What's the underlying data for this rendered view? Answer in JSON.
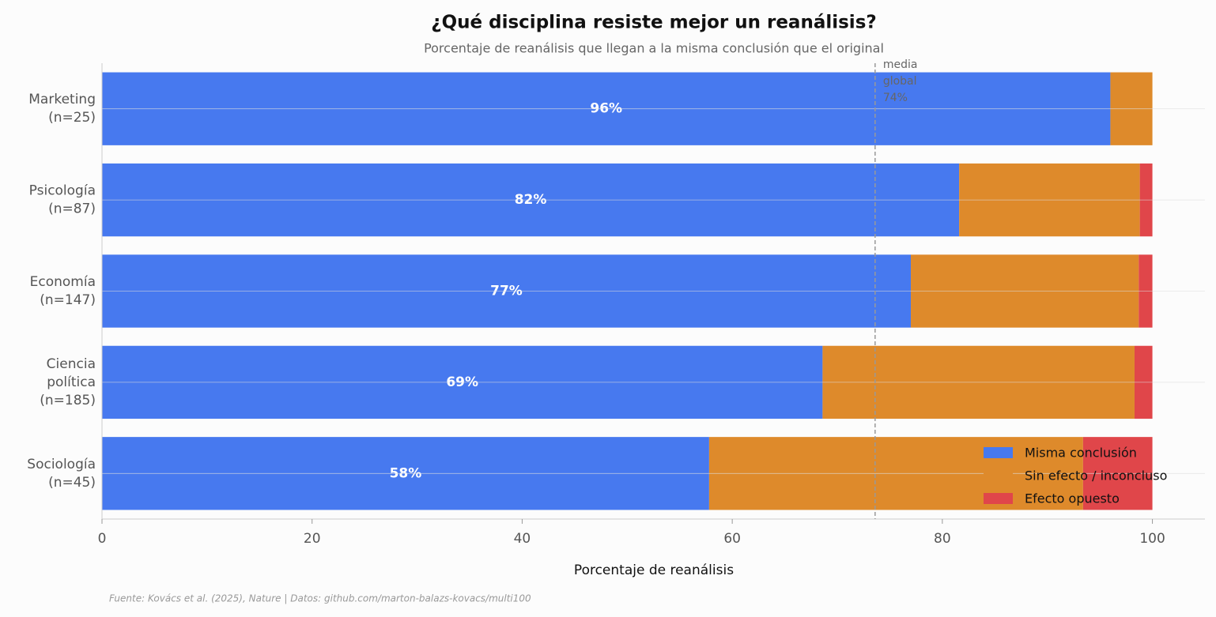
{
  "chart_data": {
    "type": "stacked_barh",
    "title": "¿Qué disciplina resiste mejor un reanálisis?",
    "subtitle": "Porcentaje de reanálisis que llegan a la misma conclusión que el original",
    "x_label": "Porcentaje de reanálisis",
    "source": "Fuente: Kovács et al. (2025), Nature | Datos: github.com/marton-balazs-kovacs/multi100",
    "categories": [
      "Marketing\n(n=25)",
      "Psicología\n(n=87)",
      "Economía\n(n=147)",
      "Ciencia\npolítica\n(n=185)",
      "Sociología\n(n=45)"
    ],
    "series": [
      {
        "name": "Misma conclusión",
        "color": "#4779ef",
        "values": [
          96.0,
          81.6,
          77.0,
          68.6,
          57.8
        ],
        "value_labels": [
          "96%",
          "82%",
          "77%",
          "69%",
          "58%"
        ]
      },
      {
        "name": "Sin efecto / inconcluso",
        "color": "#de8a2b",
        "values": [
          4.0,
          17.2,
          21.7,
          29.7,
          35.6
        ]
      },
      {
        "name": "Efecto opuesto",
        "color": "#e0464a",
        "values": [
          0,
          1.2,
          1.3,
          1.7,
          6.6
        ]
      }
    ],
    "xlim": [
      0,
      105
    ],
    "xticks": [
      0,
      20,
      40,
      60,
      80,
      100
    ],
    "reference_line": {
      "value": 73.6,
      "label": [
        "media",
        "global",
        "74%"
      ]
    },
    "legend": "lower right"
  }
}
